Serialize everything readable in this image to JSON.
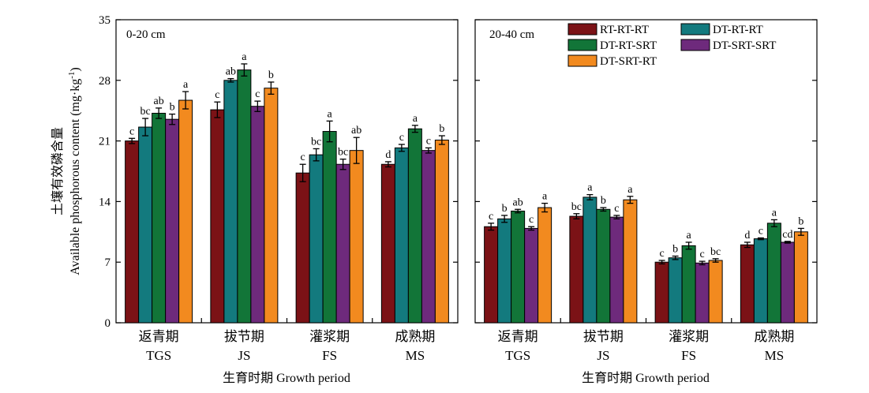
{
  "chart_data": {
    "type": "bar",
    "y_axis": {
      "label_cn": "土壤有效磷含量",
      "label_en": "Available phosphorous content (mg·kg",
      "label_en_sup": "-1",
      "label_en_end": ")",
      "ylim": [
        0,
        35
      ],
      "ticks": [
        "0",
        "7",
        "14",
        "21",
        "28",
        "35"
      ]
    },
    "x_axis": {
      "label": "生育时期 Growth period"
    },
    "categories": [
      {
        "cn": "返青期",
        "en": "TGS"
      },
      {
        "cn": "拔节期",
        "en": "JS"
      },
      {
        "cn": "灌浆期",
        "en": "FS"
      },
      {
        "cn": "成熟期",
        "en": "MS"
      }
    ],
    "series": [
      {
        "name": "RT-RT-RT",
        "color": "#7b1216"
      },
      {
        "name": "DT-RT-RT",
        "color": "#137a7e"
      },
      {
        "name": "DT-RT-SRT",
        "color": "#127538"
      },
      {
        "name": "DT-SRT-SRT",
        "color": "#6e2a7c"
      },
      {
        "name": "DT-SRT-RT",
        "color": "#f28a1f"
      }
    ],
    "legend_position": "top-right",
    "panels": [
      {
        "label": "0-20 cm",
        "values": [
          [
            21.0,
            22.6,
            24.2,
            23.5,
            25.7
          ],
          [
            24.6,
            28.0,
            29.2,
            25.0,
            27.1
          ],
          [
            17.3,
            19.4,
            22.1,
            18.3,
            19.9
          ],
          [
            18.3,
            20.2,
            22.4,
            19.9,
            21.1
          ]
        ],
        "errors": [
          [
            0.3,
            1.0,
            0.6,
            0.6,
            1.0
          ],
          [
            0.9,
            0.2,
            0.7,
            0.6,
            0.7
          ],
          [
            1.0,
            0.7,
            1.2,
            0.6,
            1.5
          ],
          [
            0.3,
            0.4,
            0.4,
            0.3,
            0.5
          ]
        ],
        "significance": [
          [
            "c",
            "bc",
            "ab",
            "b",
            "a"
          ],
          [
            "c",
            "ab",
            "a",
            "c",
            "b"
          ],
          [
            "c",
            "bc",
            "a",
            "bc",
            "ab"
          ],
          [
            "d",
            "c",
            "a",
            "c",
            "b"
          ]
        ]
      },
      {
        "label": "20-40 cm",
        "values": [
          [
            11.1,
            12.0,
            12.9,
            10.9,
            13.3
          ],
          [
            12.3,
            14.5,
            13.1,
            12.2,
            14.2
          ],
          [
            7.0,
            7.5,
            8.9,
            6.9,
            7.2
          ],
          [
            9.0,
            9.7,
            11.5,
            9.3,
            10.5
          ]
        ],
        "errors": [
          [
            0.4,
            0.4,
            0.2,
            0.2,
            0.5
          ],
          [
            0.3,
            0.3,
            0.2,
            0.2,
            0.4
          ],
          [
            0.2,
            0.2,
            0.4,
            0.2,
            0.2
          ],
          [
            0.3,
            0.1,
            0.4,
            0.1,
            0.4
          ]
        ],
        "significance": [
          [
            "c",
            "b",
            "ab",
            "c",
            "a"
          ],
          [
            "bc",
            "a",
            "b",
            "c",
            "a"
          ],
          [
            "c",
            "b",
            "a",
            "c",
            "bc"
          ],
          [
            "d",
            "c",
            "a",
            "cd",
            "b"
          ]
        ]
      }
    ]
  }
}
